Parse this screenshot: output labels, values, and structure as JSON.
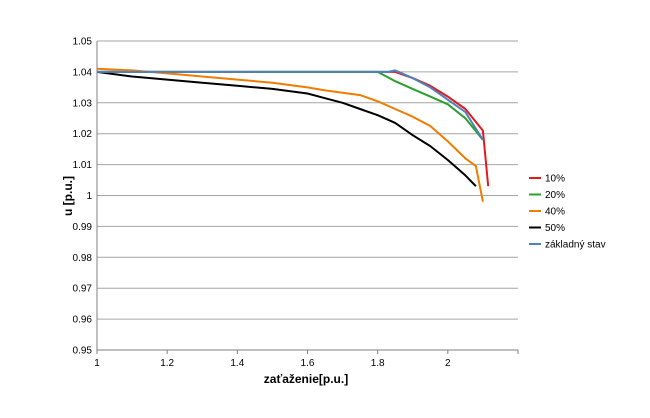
{
  "chart_data": {
    "type": "line",
    "xlabel": "zaťaženie[p.u.]",
    "ylabel": "u [p.u.]",
    "xlim": [
      1,
      2.2
    ],
    "ylim": [
      0.95,
      1.05
    ],
    "grid": true,
    "legend_position": "right",
    "x_ticks": [
      {
        "value": 1,
        "label": "1"
      },
      {
        "value": 1.2,
        "label": "1.2"
      },
      {
        "value": 1.4,
        "label": "1.4"
      },
      {
        "value": 1.6,
        "label": "1.6"
      },
      {
        "value": 1.8,
        "label": "1.8"
      },
      {
        "value": 2,
        "label": "2"
      }
    ],
    "y_ticks": [
      {
        "value": 1.05,
        "label": "1.05"
      },
      {
        "value": 1.04,
        "label": "1.04"
      },
      {
        "value": 1.03,
        "label": "1.03"
      },
      {
        "value": 1.02,
        "label": "1.02"
      },
      {
        "value": 1.01,
        "label": "1.01"
      },
      {
        "value": 1.0,
        "label": "1"
      },
      {
        "value": 0.99,
        "label": "0.99"
      },
      {
        "value": 0.98,
        "label": "0.98"
      },
      {
        "value": 0.97,
        "label": "0.97"
      },
      {
        "value": 0.96,
        "label": "0.96"
      },
      {
        "value": 0.95,
        "label": "0.95"
      }
    ],
    "series": [
      {
        "name": "10%",
        "color": "#e31a1c",
        "x": [
          1.0,
          1.1,
          1.3,
          1.5,
          1.7,
          1.8,
          1.85,
          1.9,
          1.95,
          2.0,
          2.05,
          2.1,
          2.115
        ],
        "y": [
          1.04,
          1.04,
          1.04,
          1.04,
          1.04,
          1.04,
          1.04,
          1.038,
          1.0355,
          1.032,
          1.028,
          1.021,
          1.003
        ]
      },
      {
        "name": "20%",
        "color": "#2ca02c",
        "x": [
          1.0,
          1.1,
          1.3,
          1.5,
          1.7,
          1.8,
          1.85,
          1.9,
          1.95,
          2.0,
          2.05,
          2.1
        ],
        "y": [
          1.04,
          1.04,
          1.04,
          1.04,
          1.04,
          1.04,
          1.037,
          1.0345,
          1.032,
          1.0295,
          1.025,
          1.018
        ]
      },
      {
        "name": "40%",
        "color": "#f07c00",
        "x": [
          1.0,
          1.1,
          1.2,
          1.3,
          1.4,
          1.5,
          1.6,
          1.65,
          1.75,
          1.8,
          1.85,
          1.9,
          1.95,
          2.0,
          2.05,
          2.08,
          2.1
        ],
        "y": [
          1.041,
          1.0405,
          1.0395,
          1.0385,
          1.0375,
          1.0365,
          1.035,
          1.034,
          1.0325,
          1.0305,
          1.028,
          1.0255,
          1.0225,
          1.0175,
          1.012,
          1.0095,
          0.998
        ]
      },
      {
        "name": "50%",
        "color": "#000000",
        "x": [
          1.0,
          1.1,
          1.2,
          1.3,
          1.4,
          1.5,
          1.6,
          1.65,
          1.7,
          1.75,
          1.8,
          1.85,
          1.9,
          1.95,
          2.0,
          2.05,
          2.08
        ],
        "y": [
          1.04,
          1.0385,
          1.0375,
          1.0365,
          1.0355,
          1.0345,
          1.033,
          1.0315,
          1.03,
          1.028,
          1.026,
          1.0235,
          1.0195,
          1.016,
          1.0115,
          1.0065,
          1.003
        ]
      },
      {
        "name": "základný stav",
        "color": "#4f81bd",
        "x": [
          1.0,
          1.2,
          1.4,
          1.6,
          1.8,
          1.83,
          1.85,
          1.9,
          1.95,
          2.0,
          2.05,
          2.1
        ],
        "y": [
          1.04,
          1.04,
          1.04,
          1.04,
          1.04,
          1.04,
          1.0405,
          1.038,
          1.035,
          1.031,
          1.027,
          1.018
        ]
      }
    ]
  }
}
